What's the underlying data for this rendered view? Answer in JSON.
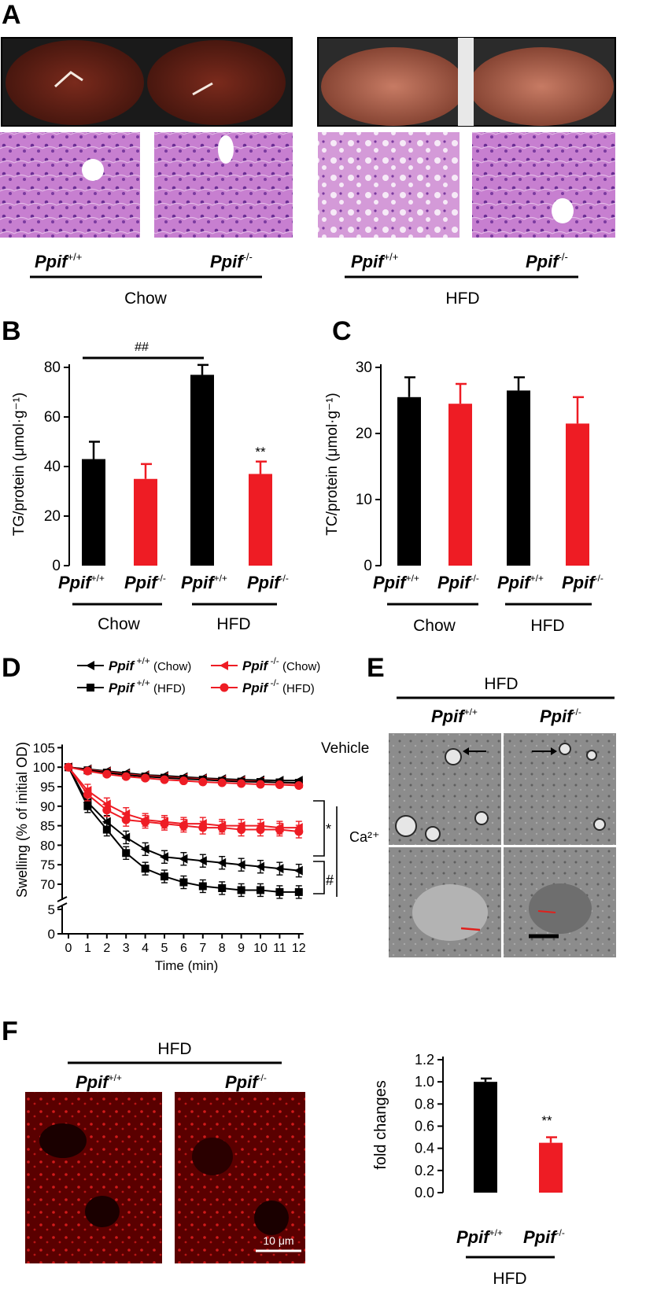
{
  "figure": {
    "panel_A": {
      "letter": "A",
      "groups": [
        {
          "name": "Chow",
          "genotypes": [
            "Ppif",
            "Ppif"
          ],
          "sups": [
            "+/+",
            "-/-"
          ]
        },
        {
          "name": "HFD",
          "genotypes": [
            "Ppif",
            "Ppif"
          ],
          "sups": [
            "+/+",
            "-/-"
          ]
        }
      ]
    },
    "panel_B": {
      "letter": "B",
      "ylabel": "TG/protein (μmol·g⁻¹)",
      "sig_hash": "##",
      "sig_star": "**"
    },
    "panel_C": {
      "letter": "C",
      "ylabel": "TC/protein (μmol·g⁻¹)"
    },
    "panel_D": {
      "letter": "D",
      "ylabel": "Swelling (% of initial OD)",
      "xlabel": "Time (min)",
      "vehicle_label": "Vehicle",
      "ca_label": "Ca²⁺",
      "sig_star": "*",
      "sig_hash": "#",
      "legend": [
        {
          "gene": "Ppif",
          "sup": "+/+",
          "cond": "(Chow)",
          "color": "#000000",
          "marker": "triangle-left"
        },
        {
          "gene": "Ppif",
          "sup": "-/-",
          "cond": "(Chow)",
          "color": "#ee1c24",
          "marker": "triangle-left"
        },
        {
          "gene": "Ppif",
          "sup": "+/+",
          "cond": "(HFD)",
          "color": "#000000",
          "marker": "square"
        },
        {
          "gene": "Ppif",
          "sup": "-/-",
          "cond": "(HFD)",
          "color": "#ee1c24",
          "marker": "circle"
        }
      ]
    },
    "panel_E": {
      "letter": "E",
      "group": "HFD",
      "genotypes": [
        "Ppif",
        "Ppif"
      ],
      "sups": [
        "+/+",
        "-/-"
      ]
    },
    "panel_F": {
      "letter": "F",
      "group": "HFD",
      "genotypes": [
        "Ppif",
        "Ppif"
      ],
      "sups": [
        "+/+",
        "-/-"
      ],
      "scale_bar": "10 μm",
      "ylabel": "fold changes",
      "sig_star": "**"
    },
    "colors": {
      "wt": "#000000",
      "ko": "#ee1c24"
    }
  },
  "chart_data": [
    {
      "id": "B",
      "type": "bar",
      "categories": [
        "Ppif +/+ Chow",
        "Ppif -/- Chow",
        "Ppif +/+ HFD",
        "Ppif -/- HFD"
      ],
      "values": [
        43,
        35,
        77,
        37
      ],
      "errors": [
        7,
        6,
        4,
        5
      ],
      "ylabel": "TG/protein (μmol·g⁻¹)",
      "ylim": [
        0,
        80
      ],
      "yticks": [
        0,
        20,
        40,
        60,
        80
      ]
    },
    {
      "id": "C",
      "type": "bar",
      "categories": [
        "Ppif +/+ Chow",
        "Ppif -/- Chow",
        "Ppif +/+ HFD",
        "Ppif -/- HFD"
      ],
      "values": [
        25.5,
        24.5,
        26.5,
        21.5
      ],
      "errors": [
        3,
        3,
        2,
        4
      ],
      "ylabel": "TC/protein (μmol·g⁻¹)",
      "ylim": [
        0,
        30
      ],
      "yticks": [
        0,
        10,
        20,
        30
      ]
    },
    {
      "id": "D",
      "type": "line",
      "x": [
        0,
        1,
        2,
        3,
        4,
        5,
        6,
        7,
        8,
        9,
        10,
        11,
        12
      ],
      "xlabel": "Time (min)",
      "ylabel": "Swelling (% of initial OD)",
      "yticks": [
        0,
        5,
        70,
        75,
        80,
        85,
        90,
        95,
        100,
        105
      ],
      "axis_break": [
        5,
        67.5
      ],
      "series": [
        {
          "name": "Ppif +/+ (Chow) Vehicle",
          "values": [
            100,
            99.5,
            99,
            98.5,
            98,
            97.8,
            97.5,
            97.2,
            97,
            96.8,
            96.7,
            96.6,
            96.6
          ]
        },
        {
          "name": "Ppif -/- (Chow) Vehicle",
          "values": [
            100,
            99.3,
            98.8,
            98.2,
            97.8,
            97.5,
            97.2,
            97,
            96.7,
            96.5,
            96.3,
            96,
            95.8
          ]
        },
        {
          "name": "Ppif +/+ (HFD) Vehicle",
          "values": [
            100,
            99.2,
            98.6,
            98,
            97.6,
            97.3,
            97,
            96.8,
            96.5,
            96.3,
            96.2,
            96.1,
            96
          ]
        },
        {
          "name": "Ppif -/- (HFD) Vehicle",
          "values": [
            100,
            99,
            98.2,
            97.6,
            97.2,
            96.8,
            96.5,
            96.2,
            96,
            95.8,
            95.6,
            95.5,
            95.3
          ]
        },
        {
          "name": "Ppif +/+ (Chow) Ca2+",
          "values": [
            100,
            91,
            86,
            82,
            79,
            77,
            76.5,
            76,
            75.5,
            75,
            74.5,
            74,
            73.5
          ]
        },
        {
          "name": "Ppif -/- (Chow) Ca2+",
          "values": [
            100,
            94,
            90.5,
            88,
            86.5,
            86,
            85.5,
            85.5,
            85,
            85,
            85,
            84.5,
            84.5
          ]
        },
        {
          "name": "Ppif +/+ (HFD) Ca2+",
          "values": [
            100,
            90,
            84,
            78,
            74,
            72,
            70.5,
            69.5,
            69,
            68.5,
            68.5,
            68,
            68
          ]
        },
        {
          "name": "Ppif -/- (HFD) Ca2+",
          "values": [
            100,
            93,
            89,
            86.5,
            86,
            85.5,
            85,
            84.5,
            84.5,
            84,
            84,
            84,
            83.5
          ]
        }
      ]
    },
    {
      "id": "F",
      "type": "bar",
      "categories": [
        "Ppif +/+",
        "Ppif -/-"
      ],
      "values": [
        1.0,
        0.45
      ],
      "errors": [
        0.03,
        0.05
      ],
      "ylabel": "fold changes",
      "ylim": [
        0,
        1.2
      ],
      "yticks": [
        0.0,
        0.2,
        0.4,
        0.6,
        0.8,
        1.0,
        1.2
      ]
    }
  ]
}
